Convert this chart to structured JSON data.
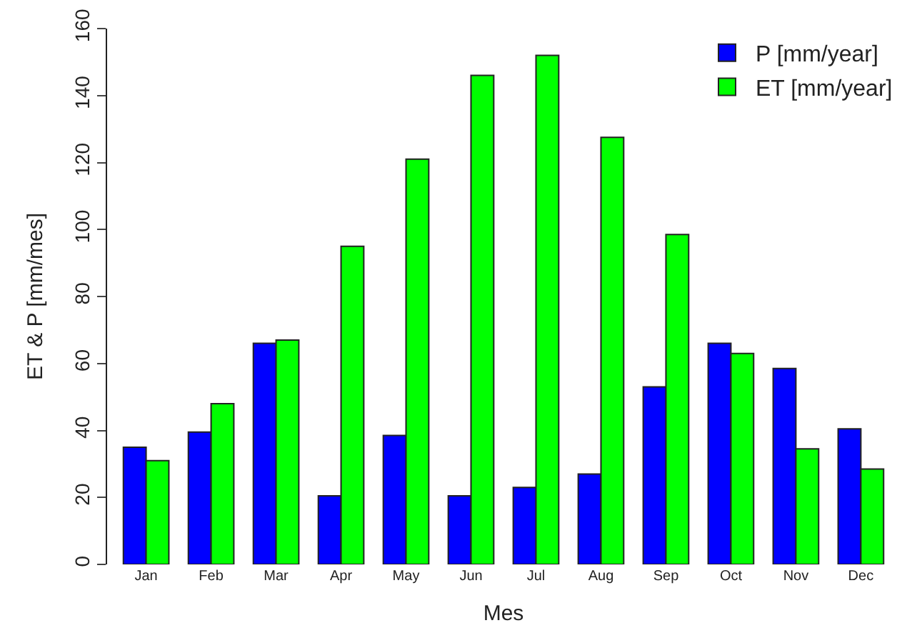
{
  "chart_data": {
    "type": "bar",
    "xlabel": "Mes",
    "ylabel": "ET & P [mm/mes]",
    "categories": [
      "Jan",
      "Feb",
      "Mar",
      "Apr",
      "May",
      "Jun",
      "Jul",
      "Aug",
      "Sep",
      "Oct",
      "Nov",
      "Dec"
    ],
    "series": [
      {
        "name": "P [mm/year]",
        "color": "#0000ff",
        "values": [
          35,
          39.5,
          66,
          20.5,
          38.5,
          20.5,
          23,
          27,
          53,
          66,
          58.5,
          40.5
        ]
      },
      {
        "name": "ET [mm/year]",
        "color": "#00ff00",
        "values": [
          31,
          48,
          67,
          95,
          121,
          146,
          152,
          127.5,
          98.5,
          63,
          34.5,
          28.5
        ]
      }
    ],
    "ylim": [
      0,
      160
    ],
    "yticks": [
      0,
      20,
      40,
      60,
      80,
      100,
      120,
      140,
      160
    ],
    "legend": "top right"
  }
}
